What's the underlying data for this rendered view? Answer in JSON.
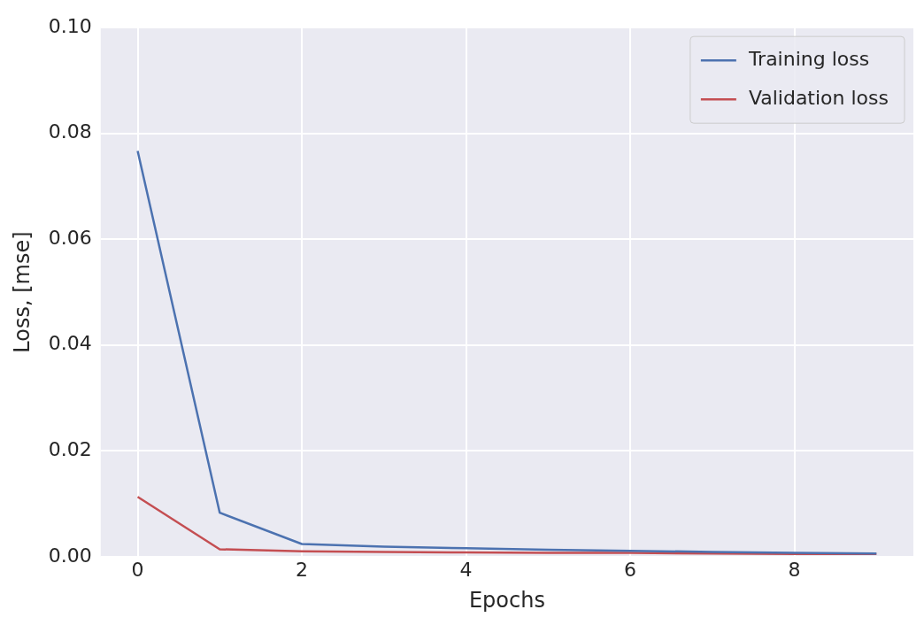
{
  "chart_data": {
    "type": "line",
    "xlabel": "Epochs",
    "ylabel": "Loss, [mse]",
    "x": [
      0,
      1,
      2,
      3,
      4,
      5,
      6,
      7,
      8,
      9
    ],
    "series": [
      {
        "name": "Training loss",
        "color": "#4c72b0",
        "values": [
          0.0767,
          0.0083,
          0.0024,
          0.0019,
          0.0016,
          0.0013,
          0.0011,
          0.0009,
          0.0007,
          0.0006
        ]
      },
      {
        "name": "Validation loss",
        "color": "#c44e52",
        "values": [
          0.0113,
          0.0014,
          0.001,
          0.0009,
          0.0008,
          0.0007,
          0.0007,
          0.0006,
          0.0005,
          0.0005
        ]
      }
    ],
    "xlim": [
      -0.45,
      9.45
    ],
    "ylim": [
      0,
      0.1
    ],
    "xticks": [
      0,
      2,
      4,
      6,
      8
    ],
    "yticks": [
      {
        "value": 0,
        "label": "0.00"
      },
      {
        "value": 0.02,
        "label": "0.02"
      },
      {
        "value": 0.04,
        "label": "0.04"
      },
      {
        "value": 0.06,
        "label": "0.06"
      },
      {
        "value": 0.08,
        "label": "0.08"
      },
      {
        "value": 0.1,
        "label": "0.10"
      }
    ],
    "grid": true,
    "legend": "top right",
    "marker": "none",
    "line_style": "solid"
  }
}
